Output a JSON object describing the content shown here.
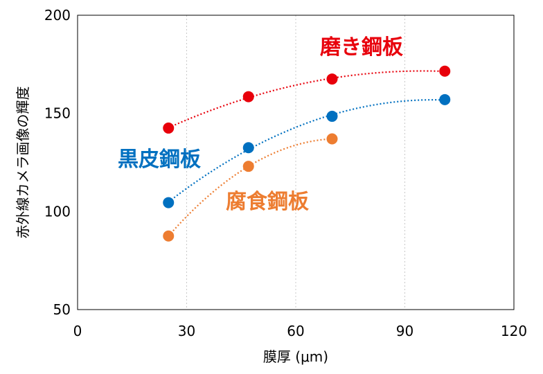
{
  "chart_data": {
    "type": "scatter",
    "xlabel": "膜厚 (μm)",
    "ylabel": "赤外線カメラ画像の輝度",
    "xlim": [
      0,
      120
    ],
    "ylim": [
      50,
      200
    ],
    "xticks": [
      0,
      30,
      60,
      90,
      120
    ],
    "yticks": [
      50,
      100,
      150,
      200
    ],
    "grid": "vertical dotted at x ticks",
    "legend": "none (series labeled directly)",
    "series": [
      {
        "name": "磨き鋼板",
        "color": "#e8000b",
        "x": [
          25,
          47,
          70,
          101
        ],
        "y": [
          142.5,
          158.5,
          167.5,
          171.5
        ],
        "trendline": "dotted polynomial"
      },
      {
        "name": "黒皮鋼板",
        "color": "#0070c0",
        "x": [
          25,
          47,
          70,
          101
        ],
        "y": [
          104.5,
          132.5,
          148.5,
          157
        ],
        "trendline": "dotted polynomial"
      },
      {
        "name": "腐食鋼板",
        "color": "#ed7d31",
        "x": [
          25,
          47,
          70
        ],
        "y": [
          87.5,
          123,
          137
        ],
        "trendline": "dotted polynomial"
      }
    ]
  }
}
